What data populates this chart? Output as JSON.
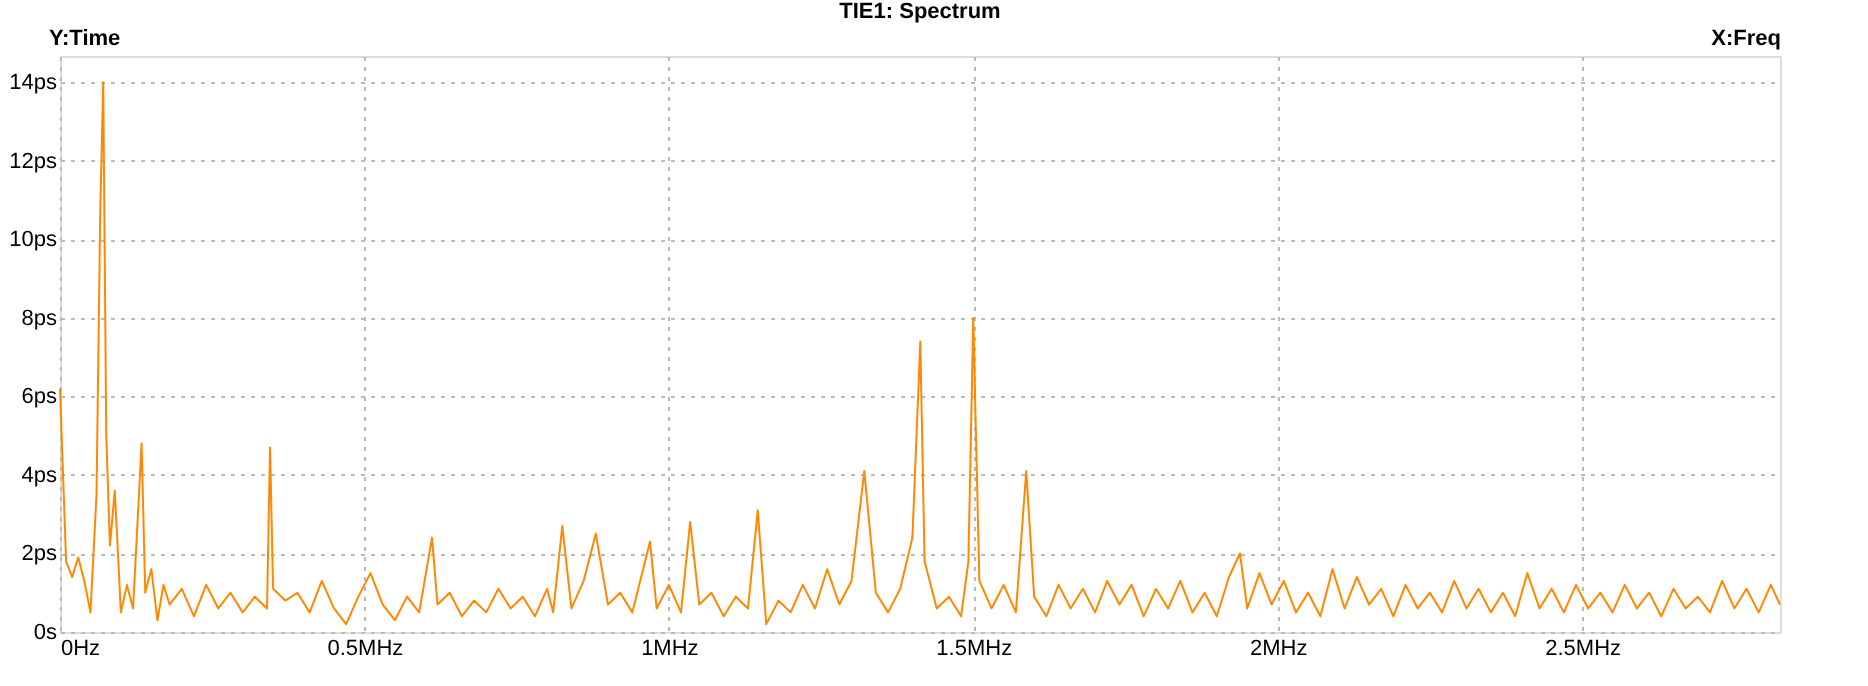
{
  "chart_data": {
    "type": "line",
    "title": "TIE1: Spectrum",
    "xlabel": "X:Freq",
    "ylabel": "Y:Time",
    "x": [
      0,
      0.01,
      0.02,
      0.03,
      0.04,
      0.05,
      0.06,
      0.066,
      0.071,
      0.076,
      0.082,
      0.09,
      0.1,
      0.11,
      0.12,
      0.134,
      0.14,
      0.15,
      0.16,
      0.17,
      0.18,
      0.2,
      0.22,
      0.24,
      0.26,
      0.28,
      0.3,
      0.32,
      0.34,
      0.345,
      0.35,
      0.37,
      0.39,
      0.41,
      0.43,
      0.45,
      0.47,
      0.49,
      0.51,
      0.53,
      0.55,
      0.57,
      0.59,
      0.611,
      0.62,
      0.64,
      0.66,
      0.68,
      0.7,
      0.72,
      0.74,
      0.76,
      0.78,
      0.8,
      0.81,
      0.825,
      0.84,
      0.86,
      0.88,
      0.9,
      0.92,
      0.94,
      0.969,
      0.98,
      1.0,
      1.02,
      1.035,
      1.05,
      1.07,
      1.09,
      1.11,
      1.13,
      1.146,
      1.16,
      1.18,
      1.2,
      1.22,
      1.24,
      1.26,
      1.28,
      1.3,
      1.321,
      1.34,
      1.36,
      1.38,
      1.4,
      1.413,
      1.42,
      1.44,
      1.46,
      1.48,
      1.492,
      1.5,
      1.51,
      1.53,
      1.55,
      1.57,
      1.587,
      1.6,
      1.62,
      1.64,
      1.66,
      1.68,
      1.7,
      1.72,
      1.74,
      1.76,
      1.78,
      1.8,
      1.82,
      1.84,
      1.86,
      1.88,
      1.9,
      1.92,
      1.938,
      1.95,
      1.97,
      1.99,
      2.01,
      2.03,
      2.05,
      2.07,
      2.09,
      2.11,
      2.13,
      2.15,
      2.17,
      2.19,
      2.21,
      2.23,
      2.25,
      2.27,
      2.29,
      2.31,
      2.33,
      2.35,
      2.37,
      2.39,
      2.41,
      2.43,
      2.45,
      2.47,
      2.49,
      2.51,
      2.53,
      2.55,
      2.57,
      2.59,
      2.61,
      2.63,
      2.65,
      2.67,
      2.69,
      2.71,
      2.73,
      2.75,
      2.77,
      2.79,
      2.81,
      2.825
    ],
    "series": [
      {
        "color": "#ff8800",
        "values": [
          6.2,
          1.8,
          1.4,
          1.9,
          1.3,
          0.5,
          3.5,
          10.6,
          14.0,
          5.0,
          2.2,
          3.6,
          0.5,
          1.2,
          0.6,
          4.8,
          1.0,
          1.6,
          0.3,
          1.2,
          0.7,
          1.1,
          0.4,
          1.2,
          0.6,
          1.0,
          0.5,
          0.9,
          0.6,
          4.7,
          1.1,
          0.8,
          1.0,
          0.5,
          1.3,
          0.6,
          0.2,
          0.9,
          1.5,
          0.7,
          0.3,
          0.9,
          0.5,
          2.4,
          0.7,
          1.0,
          0.4,
          0.8,
          0.5,
          1.1,
          0.6,
          0.9,
          0.4,
          1.1,
          0.5,
          2.7,
          0.6,
          1.3,
          2.5,
          0.7,
          1.0,
          0.5,
          2.3,
          0.6,
          1.2,
          0.5,
          2.8,
          0.7,
          1.0,
          0.4,
          0.9,
          0.6,
          3.1,
          0.2,
          0.8,
          0.5,
          1.2,
          0.6,
          1.6,
          0.7,
          1.3,
          4.1,
          1.0,
          0.5,
          1.1,
          2.4,
          7.4,
          1.8,
          0.6,
          0.9,
          0.4,
          1.8,
          8.0,
          1.3,
          0.6,
          1.2,
          0.5,
          4.1,
          0.9,
          0.4,
          1.2,
          0.6,
          1.1,
          0.5,
          1.3,
          0.7,
          1.2,
          0.4,
          1.1,
          0.6,
          1.3,
          0.5,
          1.0,
          0.4,
          1.4,
          2.0,
          0.6,
          1.5,
          0.7,
          1.3,
          0.5,
          1.0,
          0.4,
          1.6,
          0.6,
          1.4,
          0.7,
          1.1,
          0.4,
          1.2,
          0.6,
          1.0,
          0.5,
          1.3,
          0.6,
          1.1,
          0.5,
          1.0,
          0.4,
          1.5,
          0.6,
          1.1,
          0.5,
          1.2,
          0.6,
          1.0,
          0.5,
          1.2,
          0.6,
          1.0,
          0.4,
          1.1,
          0.6,
          0.9,
          0.5,
          1.3,
          0.6,
          1.1,
          0.5,
          1.2,
          0.7
        ]
      }
    ],
    "xlim": [
      0,
      2.825
    ],
    "ylim": [
      0,
      14.67
    ],
    "xticks": [
      {
        "value": 0,
        "label": "0Hz"
      },
      {
        "value": 0.5,
        "label": "0.5MHz"
      },
      {
        "value": 1,
        "label": "1MHz"
      },
      {
        "value": 1.5,
        "label": "1.5MHz"
      },
      {
        "value": 2,
        "label": "2MHz"
      },
      {
        "value": 2.5,
        "label": "2.5MHz"
      }
    ],
    "yticks": [
      {
        "value": 0,
        "label": "0s"
      },
      {
        "value": 2,
        "label": "2ps"
      },
      {
        "value": 4,
        "label": "4ps"
      },
      {
        "value": 6,
        "label": "6ps"
      },
      {
        "value": 8,
        "label": "8ps"
      },
      {
        "value": 10,
        "label": "10ps"
      },
      {
        "value": 12,
        "label": "12ps"
      },
      {
        "value": 14,
        "label": "14ps"
      }
    ],
    "grid": true,
    "line_style": "solid",
    "marker": "none"
  }
}
